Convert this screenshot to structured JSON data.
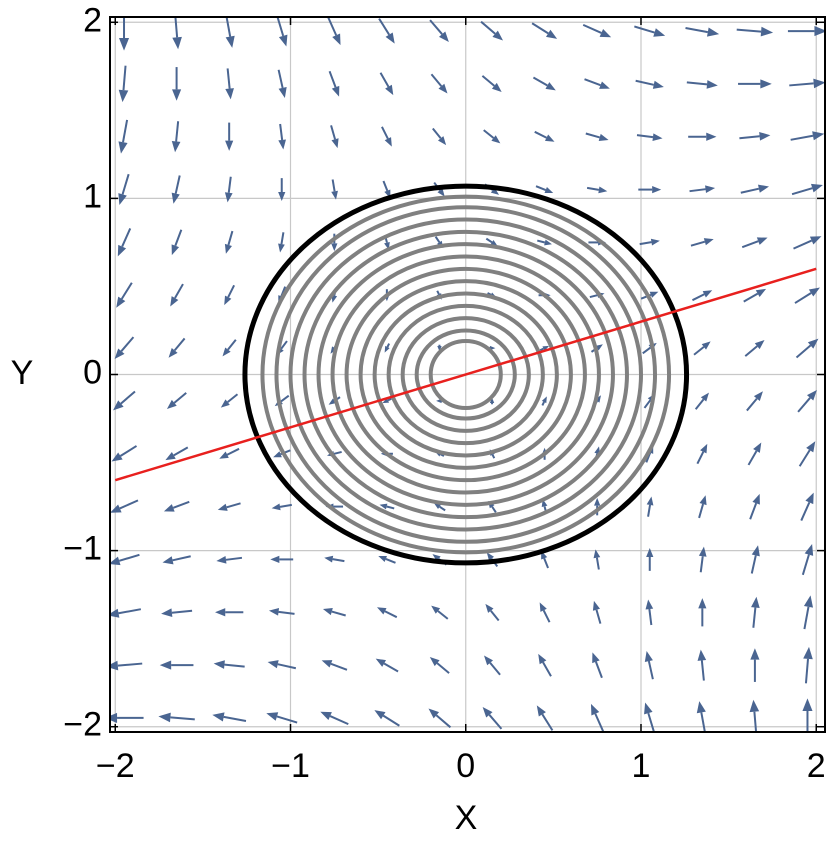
{
  "chart_data": {
    "type": "vectorfield",
    "x_label": "X",
    "y_label": "Y",
    "xlim": [
      -2.03,
      2.05
    ],
    "ylim": [
      -2.03,
      2.03
    ],
    "xticks": [
      {
        "value": -2,
        "label": "−2"
      },
      {
        "value": -1,
        "label": "−1"
      },
      0,
      1,
      2
    ],
    "yticks": [
      {
        "value": -2,
        "label": "−2"
      },
      {
        "value": -1,
        "label": "−1"
      },
      0,
      1,
      2
    ],
    "grid": true,
    "field": {
      "color": "#4a6591",
      "x": [
        -1.95,
        -1.65,
        -1.35,
        -1.05,
        -0.75,
        -0.45,
        -0.15,
        0.15,
        0.45,
        0.75,
        1.05,
        1.35,
        1.65,
        1.95
      ],
      "y": [
        -1.95,
        -1.65,
        -1.35,
        -1.05,
        -0.75,
        -0.45,
        -0.15,
        0.15,
        0.45,
        0.75,
        1.05,
        1.35,
        1.65,
        1.95
      ],
      "u": [
        [
          -3.9,
          -3.6,
          -3.3,
          -3.0,
          -2.7,
          -2.4,
          -2.1,
          -1.8,
          -1.5,
          -1.2,
          -0.9,
          -0.6,
          -0.3,
          0
        ],
        [
          -3.6,
          -3.3,
          -3.0,
          -2.7,
          -2.4,
          -2.1,
          -1.8,
          -1.5,
          -1.2,
          -0.9,
          -0.6,
          -0.3,
          0,
          0.3
        ],
        [
          -3.3,
          -3.0,
          -2.7,
          -2.4,
          -2.1,
          -1.8,
          -1.5,
          -1.2,
          -0.9,
          -0.6,
          -0.3,
          0,
          0.3,
          0.6
        ],
        [
          -3.0,
          -2.7,
          -2.4,
          -2.1,
          -1.8,
          -1.5,
          -1.2,
          -0.9,
          -0.6,
          -0.3,
          0,
          0.3,
          0.6,
          0.9
        ],
        [
          -2.7,
          -2.4,
          -2.1,
          -1.8,
          -1.5,
          -1.2,
          -0.9,
          -0.6,
          -0.3,
          0,
          0.3,
          0.6,
          0.9,
          1.2
        ],
        [
          -2.4,
          -2.1,
          -1.8,
          -1.5,
          -1.2,
          -0.9,
          -0.6,
          -0.3,
          0,
          0.3,
          0.6,
          0.9,
          1.2,
          1.5
        ],
        [
          -2.1,
          -1.8,
          -1.5,
          -1.2,
          -0.9,
          -0.6,
          -0.3,
          0,
          0.3,
          0.6,
          0.9,
          1.2,
          1.5,
          1.8
        ],
        [
          -1.8,
          -1.5,
          -1.2,
          -0.9,
          -0.6,
          -0.3,
          0,
          0.3,
          0.6,
          0.9,
          1.2,
          1.5,
          1.8,
          2.1
        ],
        [
          -1.5,
          -1.2,
          -0.9,
          -0.6,
          -0.3,
          0,
          0.3,
          0.6,
          0.9,
          1.2,
          1.5,
          1.8,
          2.1,
          2.4
        ],
        [
          -1.2,
          -0.9,
          -0.6,
          -0.3,
          0,
          0.3,
          0.6,
          0.9,
          1.2,
          1.5,
          1.8,
          2.1,
          2.4,
          2.7
        ],
        [
          -0.9,
          -0.6,
          -0.3,
          0,
          0.3,
          0.6,
          0.9,
          1.2,
          1.5,
          1.8,
          2.1,
          2.4,
          2.7,
          3.0
        ],
        [
          -0.6,
          -0.3,
          0,
          0.3,
          0.6,
          0.9,
          1.2,
          1.5,
          1.8,
          2.1,
          2.4,
          2.7,
          3.0,
          3.3
        ],
        [
          -0.3,
          0,
          0.3,
          0.6,
          0.9,
          1.2,
          1.5,
          1.8,
          2.1,
          2.4,
          2.7,
          3.0,
          3.3,
          3.6
        ],
        [
          0,
          0.3,
          0.6,
          0.9,
          1.2,
          1.5,
          1.8,
          2.1,
          2.4,
          2.7,
          3.0,
          3.3,
          3.6,
          3.9
        ]
      ],
      "v": [
        [
          0,
          0.3,
          0.6,
          0.9,
          1.2,
          1.5,
          1.8,
          2.1,
          2.4,
          2.7,
          3.0,
          3.3,
          3.6,
          3.9
        ],
        [
          -0.3,
          0,
          0.3,
          0.6,
          0.9,
          1.2,
          1.5,
          1.8,
          2.1,
          2.4,
          2.7,
          3.0,
          3.3,
          3.6
        ],
        [
          -0.6,
          -0.3,
          0,
          0.3,
          0.6,
          0.9,
          1.2,
          1.5,
          1.8,
          2.1,
          2.4,
          2.7,
          3.0,
          3.3
        ],
        [
          -0.9,
          -0.6,
          -0.3,
          0,
          0.3,
          0.6,
          0.9,
          1.2,
          1.5,
          1.8,
          2.1,
          2.4,
          2.7,
          3.0
        ],
        [
          -1.2,
          -0.9,
          -0.6,
          -0.3,
          0,
          0.3,
          0.6,
          0.9,
          1.2,
          1.5,
          1.8,
          2.1,
          2.4,
          2.7
        ],
        [
          -1.5,
          -1.2,
          -0.9,
          -0.6,
          -0.3,
          0,
          0.3,
          0.6,
          0.9,
          1.2,
          1.5,
          1.8,
          2.1,
          2.4
        ],
        [
          -1.8,
          -1.5,
          -1.2,
          -0.9,
          -0.6,
          -0.3,
          0,
          0.3,
          0.6,
          0.9,
          1.2,
          1.5,
          1.8,
          2.1
        ],
        [
          -2.1,
          -1.8,
          -1.5,
          -1.2,
          -0.9,
          -0.6,
          -0.3,
          0,
          0.3,
          0.6,
          0.9,
          1.2,
          1.5,
          1.8
        ],
        [
          -2.4,
          -2.1,
          -1.8,
          -1.5,
          -1.2,
          -0.9,
          -0.6,
          -0.3,
          0,
          0.3,
          0.6,
          0.9,
          1.2,
          1.5
        ],
        [
          -2.7,
          -2.4,
          -2.1,
          -1.8,
          -1.5,
          -1.2,
          -0.9,
          -0.6,
          -0.3,
          0,
          0.3,
          0.6,
          0.9,
          1.2
        ],
        [
          -3.0,
          -2.7,
          -2.4,
          -2.1,
          -1.8,
          -1.5,
          -1.2,
          -0.9,
          -0.6,
          -0.3,
          0,
          0.3,
          0.6,
          0.9
        ],
        [
          -3.3,
          -3.0,
          -2.7,
          -2.4,
          -2.1,
          -1.8,
          -1.5,
          -1.2,
          -0.9,
          -0.6,
          -0.3,
          0,
          0.3,
          0.6
        ],
        [
          -3.6,
          -3.3,
          -3.0,
          -2.7,
          -2.4,
          -2.1,
          -1.8,
          -1.5,
          -1.2,
          -0.9,
          -0.6,
          -0.3,
          0,
          0.3
        ],
        [
          -3.9,
          -3.6,
          -3.3,
          -3.0,
          -2.7,
          -2.4,
          -2.1,
          -1.8,
          -1.5,
          -1.2,
          -0.9,
          -0.6,
          -0.3,
          0
        ]
      ]
    },
    "contours": {
      "color": "#808080",
      "rx": [
        0.2,
        0.28,
        0.36,
        0.44,
        0.52,
        0.6,
        0.68,
        0.76,
        0.84,
        0.92,
        1.0,
        1.08,
        1.16
      ],
      "ry": [
        0.19,
        0.25,
        0.32,
        0.39,
        0.46,
        0.53,
        0.6,
        0.67,
        0.74,
        0.81,
        0.88,
        0.95,
        1.01
      ]
    },
    "boundary": {
      "rx": 1.26,
      "ry": 1.07,
      "color": "#000000"
    },
    "line": {
      "x": [
        -2,
        2
      ],
      "y": [
        -0.6,
        0.6
      ],
      "color": "#e8201e"
    }
  }
}
